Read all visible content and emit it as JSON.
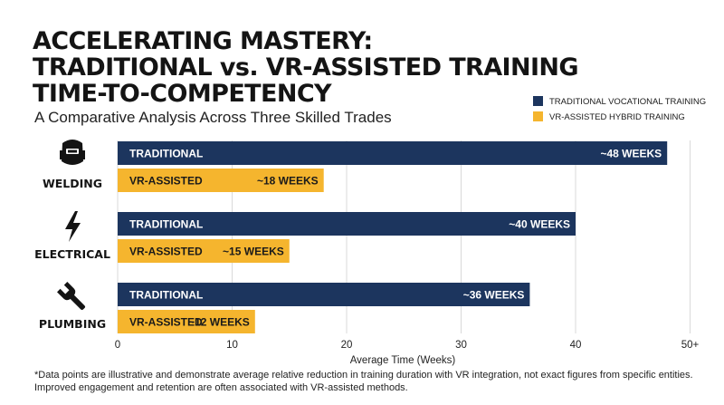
{
  "title_lines": [
    "ACCELERATING MASTERY:",
    "TRADITIONAL vs. VR-ASSISTED TRAINING",
    "TIME-TO-COMPETENCY"
  ],
  "subtitle": "A Comparative Analysis Across Three Skilled Trades",
  "legend": [
    {
      "label": "TRADITIONAL VOCATIONAL TRAINING",
      "color": "#1c355e"
    },
    {
      "label": "VR-ASSISTED HYBRID TRAINING",
      "color": "#f5b52e"
    }
  ],
  "footnote": "*Data points are illustrative and demonstrate average relative reduction in training duration with VR integration, not exact figures from specific entities. Improved engagement and retention are often associated with VR-assisted methods.",
  "chart_data": {
    "type": "bar",
    "orientation": "horizontal",
    "categories": [
      "WELDING",
      "ELECTRICAL",
      "PLUMBING"
    ],
    "category_icons": [
      "welding-helmet-icon",
      "lightning-bolt-icon",
      "wrench-icon"
    ],
    "series": [
      {
        "name": "TRADITIONAL VOCATIONAL TRAINING",
        "bar_label": "TRADITIONAL",
        "color": "#1c355e",
        "values": [
          48,
          40,
          36
        ],
        "value_labels": [
          "~48 WEEKS",
          "~40 WEEKS",
          "~36 WEEKS"
        ]
      },
      {
        "name": "VR-ASSISTED HYBRID TRAINING",
        "bar_label": "VR-ASSISTED",
        "color": "#f5b52e",
        "values": [
          18,
          15,
          12
        ],
        "value_labels": [
          "~18 WEEKS",
          "~15 WEEKS",
          "~12 WEEKS"
        ]
      }
    ],
    "xlabel": "Average Time (Weeks)",
    "xticks": [
      "0",
      "10",
      "20",
      "30",
      "40",
      "50+"
    ],
    "xlim": [
      0,
      50
    ],
    "grid": true,
    "legend_position": "top-right"
  }
}
